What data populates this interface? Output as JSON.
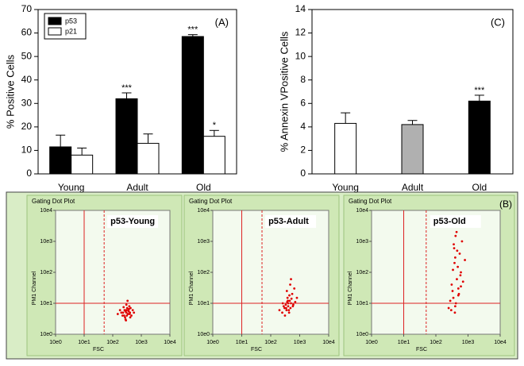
{
  "chart_data": [
    {
      "type": "bar",
      "panel_label": "(A)",
      "ylabel": "% Positive Cells",
      "categories": [
        "Young",
        "Adult",
        "Old"
      ],
      "series": [
        {
          "name": "p53",
          "color": "#000000",
          "values": [
            11.5,
            32,
            58.5
          ],
          "errors": [
            5,
            2.5,
            0.8
          ],
          "significance": [
            null,
            "***",
            "***"
          ]
        },
        {
          "name": "p21",
          "color": "#ffffff",
          "values": [
            8,
            13,
            16
          ],
          "errors": [
            3,
            4,
            2.5
          ],
          "significance": [
            null,
            null,
            "*"
          ]
        }
      ],
      "ylim": [
        0,
        70
      ],
      "yticks": [
        0,
        10,
        20,
        30,
        40,
        50,
        60,
        70
      ],
      "legend": "top-left"
    },
    {
      "type": "bar",
      "panel_label": "(C)",
      "ylabel": "% Annexin VPositive Cells",
      "categories": [
        "Young",
        "Adult",
        "Old"
      ],
      "values": [
        4.3,
        4.2,
        6.2
      ],
      "errors": [
        0.9,
        0.35,
        0.5
      ],
      "colors": [
        "#ffffff",
        "#b0b0b0",
        "#000000"
      ],
      "significance": [
        null,
        null,
        "***"
      ],
      "ylim": [
        0,
        14
      ],
      "yticks": [
        0,
        2,
        4,
        6,
        8,
        10,
        12,
        14
      ]
    },
    {
      "type": "scatter",
      "panel_label": "(B)",
      "title": "Gating Dot Plot",
      "label": "p53-Young",
      "xlabel": "FSC",
      "ylabel": "PM1 Channel",
      "log": true,
      "color": "#e00000",
      "xlim": [
        1,
        10000
      ],
      "ylim": [
        1,
        10000
      ],
      "xticks": [
        {
          "value": 1,
          "label": "10e0"
        },
        {
          "value": 10,
          "label": "10e1"
        },
        {
          "value": 100,
          "label": "10e2"
        },
        {
          "value": 1000,
          "label": "10e3"
        },
        {
          "value": 10000,
          "label": "10e4"
        }
      ],
      "yticks": [
        {
          "value": 1,
          "label": "10e0"
        },
        {
          "value": 10,
          "label": "10e1"
        },
        {
          "value": 100,
          "label": "10e2"
        },
        {
          "value": 1000,
          "label": "10e3"
        },
        {
          "value": 10000,
          "label": "10e4"
        }
      ],
      "vlines": [
        {
          "x": 10,
          "style": "solid"
        },
        {
          "x": 50,
          "style": "dashed"
        }
      ],
      "hlines": [
        {
          "y": 10,
          "style": "solid"
        }
      ],
      "x": [
        300,
        250,
        350,
        400,
        200,
        280,
        320,
        450,
        380,
        260,
        220,
        340,
        500,
        300,
        270,
        360,
        180,
        420,
        310,
        240,
        290,
        330,
        410,
        230,
        370,
        150,
        550,
        280,
        300,
        390
      ],
      "y": [
        5,
        4,
        6,
        5,
        5,
        3,
        7,
        4,
        8,
        6,
        4,
        4.5,
        6,
        9,
        3.5,
        5.5,
        6,
        7,
        4,
        7.5,
        2.8,
        12,
        3.5,
        5,
        6.5,
        4.5,
        5,
        5.5,
        6,
        4.5
      ]
    },
    {
      "type": "scatter",
      "title": "Gating Dot Plot",
      "label": "p53-Adult",
      "xlabel": "FSC",
      "ylabel": "PM1 Channel",
      "log": true,
      "color": "#e00000",
      "xlim": [
        1,
        10000
      ],
      "ylim": [
        1,
        10000
      ],
      "xticks": [
        {
          "value": 1,
          "label": "10e0"
        },
        {
          "value": 10,
          "label": "10e1"
        },
        {
          "value": 100,
          "label": "10e2"
        },
        {
          "value": 1000,
          "label": "10e3"
        },
        {
          "value": 10000,
          "label": "10e4"
        }
      ],
      "yticks": [
        {
          "value": 1,
          "label": "10e0"
        },
        {
          "value": 10,
          "label": "10e1"
        },
        {
          "value": 100,
          "label": "10e2"
        },
        {
          "value": 1000,
          "label": "10e3"
        },
        {
          "value": 10000,
          "label": "10e4"
        }
      ],
      "vlines": [
        {
          "x": 10,
          "style": "solid"
        },
        {
          "x": 50,
          "style": "dashed"
        }
      ],
      "hlines": [
        {
          "y": 10,
          "style": "solid"
        }
      ],
      "x": [
        400,
        350,
        500,
        300,
        450,
        600,
        250,
        380,
        420,
        550,
        330,
        700,
        280,
        480,
        360,
        520,
        200,
        400,
        650,
        310,
        440,
        580,
        390,
        260,
        470,
        340,
        800,
        430,
        500,
        370
      ],
      "y": [
        8,
        6,
        10,
        7,
        12,
        9,
        5,
        15,
        6,
        20,
        9,
        11,
        8,
        7,
        25,
        14,
        6,
        10,
        30,
        4,
        18,
        8,
        12,
        10,
        40,
        7,
        15,
        5,
        60,
        11
      ]
    },
    {
      "type": "scatter",
      "title": "Gating Dot Plot",
      "label": "p53-Old",
      "xlabel": "FSC",
      "ylabel": "PM1 Channel",
      "log": true,
      "color": "#e00000",
      "xlim": [
        1,
        10000
      ],
      "ylim": [
        1,
        10000
      ],
      "xticks": [
        {
          "value": 1,
          "label": "10e0"
        },
        {
          "value": 10,
          "label": "10e1"
        },
        {
          "value": 100,
          "label": "10e2"
        },
        {
          "value": 1000,
          "label": "10e3"
        },
        {
          "value": 10000,
          "label": "10e4"
        }
      ],
      "yticks": [
        {
          "value": 1,
          "label": "10e0"
        },
        {
          "value": 10,
          "label": "10e1"
        },
        {
          "value": 100,
          "label": "10e2"
        },
        {
          "value": 1000,
          "label": "10e3"
        },
        {
          "value": 10000,
          "label": "10e4"
        }
      ],
      "vlines": [
        {
          "x": 10,
          "style": "solid"
        },
        {
          "x": 50,
          "style": "dashed"
        }
      ],
      "hlines": [
        {
          "y": 10,
          "style": "solid"
        }
      ],
      "x": [
        400,
        350,
        500,
        300,
        450,
        600,
        380,
        420,
        550,
        330,
        700,
        280,
        480,
        360,
        520,
        250,
        400,
        650,
        310,
        440,
        580,
        390,
        460,
        340,
        800,
        430,
        500,
        370,
        600,
        410
      ],
      "y": [
        8,
        15,
        30,
        6,
        60,
        100,
        200,
        10,
        400,
        25,
        50,
        12,
        150,
        800,
        20,
        7,
        300,
        1000,
        40,
        2000,
        80,
        5,
        500,
        120,
        250,
        3000,
        18,
        600,
        35,
        1500
      ]
    }
  ]
}
